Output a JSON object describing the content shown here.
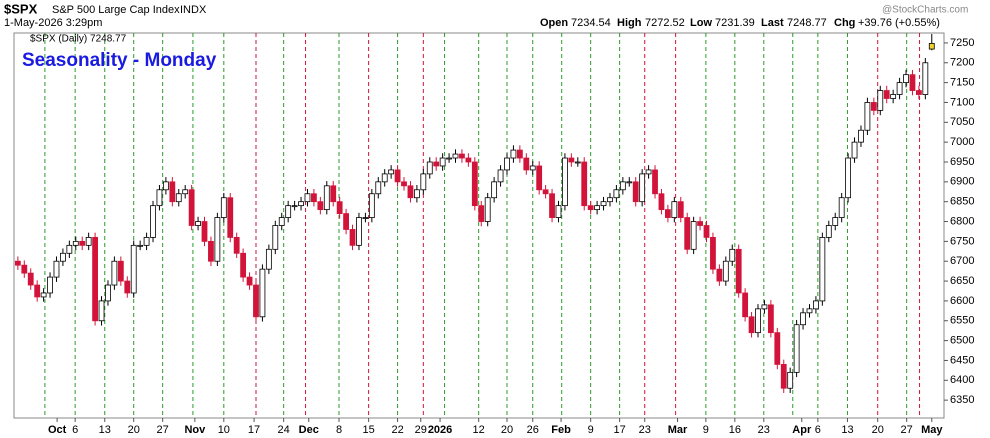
{
  "chart_data": {
    "type": "candlestick",
    "symbol": "$SPX",
    "description": "S&P 500 Large Cap Index",
    "exchange": "INDX",
    "timestamp": "1-May-2026 3:29pm",
    "quote": {
      "open_label": "Open",
      "open": "7234.54",
      "high_label": "High",
      "high": "7272.52",
      "low_label": "Low",
      "low": "7231.39",
      "last_label": "Last",
      "last": "7248.77",
      "chg_label": "Chg",
      "chg": "+39.76 (+0.55%)"
    },
    "watermark": "@StockCharts.com",
    "legend": "$SPX (Daily) 7248.77",
    "title": "Seasonality - Monday",
    "up_color": "#ffffff",
    "down_color": "#d2143a",
    "last_color": "#f2d22e",
    "ylim": [
      6305,
      7275
    ],
    "yticks": [
      6350,
      6400,
      6450,
      6500,
      6550,
      6600,
      6650,
      6700,
      6750,
      6800,
      6850,
      6900,
      6950,
      7000,
      7050,
      7100,
      7150,
      7200,
      7250
    ],
    "xlim": [
      -0.6,
      143.9
    ],
    "xticks": [
      {
        "value": 6.1,
        "label": "Oct"
      },
      {
        "value": 8.9,
        "label": "6"
      },
      {
        "value": 13.5,
        "label": "13"
      },
      {
        "value": 18,
        "label": "20"
      },
      {
        "value": 22.5,
        "label": "27"
      },
      {
        "value": 27.5,
        "label": "Nov"
      },
      {
        "value": 32,
        "label": "10"
      },
      {
        "value": 36.7,
        "label": "17"
      },
      {
        "value": 41.3,
        "label": "24"
      },
      {
        "value": 45.2,
        "label": "Dec"
      },
      {
        "value": 49.9,
        "label": "8"
      },
      {
        "value": 54.5,
        "label": "15"
      },
      {
        "value": 59,
        "label": "22"
      },
      {
        "value": 62.6,
        "label": "29"
      },
      {
        "value": 65.6,
        "label": "2026"
      },
      {
        "value": 71.6,
        "label": "12"
      },
      {
        "value": 76,
        "label": "20"
      },
      {
        "value": 80,
        "label": "26"
      },
      {
        "value": 84.4,
        "label": "Feb"
      },
      {
        "value": 89,
        "label": "9"
      },
      {
        "value": 93.5,
        "label": "17"
      },
      {
        "value": 97.4,
        "label": "23"
      },
      {
        "value": 102.5,
        "label": "Mar"
      },
      {
        "value": 106.9,
        "label": "9"
      },
      {
        "value": 111.4,
        "label": "16"
      },
      {
        "value": 115.9,
        "label": "23"
      },
      {
        "value": 121.8,
        "label": "Apr"
      },
      {
        "value": 124.3,
        "label": "6"
      },
      {
        "value": 128.9,
        "label": "13"
      },
      {
        "value": 133.6,
        "label": "20"
      },
      {
        "value": 138.1,
        "label": "27"
      },
      {
        "value": 142,
        "label": "May"
      }
    ],
    "bold_ticks": [
      "Oct",
      "Nov",
      "Dec",
      "2026",
      "Feb",
      "Mar",
      "Apr",
      "May"
    ],
    "monday_lines": [
      {
        "value": 4.2,
        "color": "#2a9d2a"
      },
      {
        "value": 8.9,
        "color": "#2a9d2a"
      },
      {
        "value": 13.5,
        "color": "#2a9d2a"
      },
      {
        "value": 18,
        "color": "#2a9d2a"
      },
      {
        "value": 22.5,
        "color": "#2a9d2a"
      },
      {
        "value": 27.2,
        "color": "#2a9d2a"
      },
      {
        "value": 32,
        "color": "#2a9d2a"
      },
      {
        "value": 37,
        "color": "#d2143a"
      },
      {
        "value": 41.3,
        "color": "#2a9d2a"
      },
      {
        "value": 44.7,
        "color": "#d2143a"
      },
      {
        "value": 49.9,
        "color": "#2a9d2a"
      },
      {
        "value": 54.5,
        "color": "#d2143a"
      },
      {
        "value": 59,
        "color": "#2a9d2a"
      },
      {
        "value": 63,
        "color": "#d2143a"
      },
      {
        "value": 66.3,
        "color": "#2a9d2a"
      },
      {
        "value": 71.6,
        "color": "#2a9d2a"
      },
      {
        "value": 76,
        "color": "#2a9d2a"
      },
      {
        "value": 80,
        "color": "#2a9d2a"
      },
      {
        "value": 84.5,
        "color": "#2a9d2a"
      },
      {
        "value": 89,
        "color": "#2a9d2a"
      },
      {
        "value": 93.5,
        "color": "#2a9d2a"
      },
      {
        "value": 97.4,
        "color": "#d2143a"
      },
      {
        "value": 102.2,
        "color": "#d2143a"
      },
      {
        "value": 106.9,
        "color": "#2a9d2a"
      },
      {
        "value": 111.4,
        "color": "#2a9d2a"
      },
      {
        "value": 115.9,
        "color": "#2a9d2a"
      },
      {
        "value": 120.4,
        "color": "#2a9d2a"
      },
      {
        "value": 124.3,
        "color": "#2a9d2a"
      },
      {
        "value": 128.9,
        "color": "#2a9d2a"
      },
      {
        "value": 133.6,
        "color": "#d2143a"
      },
      {
        "value": 138.1,
        "color": "#2a9d2a"
      },
      {
        "value": 140.1,
        "color": "#d2143a"
      }
    ],
    "candles": [
      [
        6700,
        6712,
        6678,
        6690
      ],
      [
        6690,
        6702,
        6658,
        6670
      ],
      [
        6670,
        6682,
        6628,
        6640
      ],
      [
        6640,
        6652,
        6598,
        6610
      ],
      [
        6610,
        6632,
        6598,
        6620
      ],
      [
        6620,
        6672,
        6608,
        6660
      ],
      [
        6660,
        6712,
        6648,
        6700
      ],
      [
        6700,
        6732,
        6688,
        6720
      ],
      [
        6720,
        6752,
        6708,
        6740
      ],
      [
        6740,
        6762,
        6728,
        6750
      ],
      [
        6750,
        6762,
        6728,
        6740
      ],
      [
        6740,
        6772,
        6728,
        6760
      ],
      [
        6760,
        6772,
        6538,
        6550
      ],
      [
        6550,
        6612,
        6538,
        6600
      ],
      [
        6600,
        6652,
        6588,
        6640
      ],
      [
        6640,
        6712,
        6628,
        6700
      ],
      [
        6700,
        6712,
        6638,
        6650
      ],
      [
        6650,
        6662,
        6608,
        6620
      ],
      [
        6620,
        6752,
        6608,
        6740
      ],
      [
        6740,
        6752,
        6728,
        6740
      ],
      [
        6740,
        6772,
        6728,
        6760
      ],
      [
        6760,
        6852,
        6748,
        6840
      ],
      [
        6840,
        6892,
        6828,
        6880
      ],
      [
        6880,
        6912,
        6868,
        6900
      ],
      [
        6900,
        6912,
        6838,
        6850
      ],
      [
        6850,
        6882,
        6838,
        6870
      ],
      [
        6870,
        6892,
        6858,
        6880
      ],
      [
        6880,
        6892,
        6778,
        6790
      ],
      [
        6790,
        6812,
        6778,
        6800
      ],
      [
        6800,
        6812,
        6738,
        6750
      ],
      [
        6750,
        6762,
        6688,
        6700
      ],
      [
        6700,
        6822,
        6688,
        6810
      ],
      [
        6810,
        6872,
        6798,
        6860
      ],
      [
        6860,
        6872,
        6748,
        6760
      ],
      [
        6760,
        6772,
        6708,
        6720
      ],
      [
        6720,
        6732,
        6648,
        6660
      ],
      [
        6660,
        6672,
        6628,
        6640
      ],
      [
        6640,
        6652,
        6548,
        6560
      ],
      [
        6560,
        6692,
        6548,
        6680
      ],
      [
        6680,
        6742,
        6668,
        6730
      ],
      [
        6730,
        6802,
        6718,
        6790
      ],
      [
        6790,
        6822,
        6778,
        6810
      ],
      [
        6810,
        6852,
        6798,
        6840
      ],
      [
        6840,
        6852,
        6828,
        6840
      ],
      [
        6840,
        6862,
        6828,
        6850
      ],
      [
        6850,
        6882,
        6838,
        6870
      ],
      [
        6870,
        6882,
        6838,
        6850
      ],
      [
        6850,
        6862,
        6818,
        6830
      ],
      [
        6830,
        6902,
        6818,
        6890
      ],
      [
        6890,
        6902,
        6838,
        6850
      ],
      [
        6850,
        6862,
        6808,
        6820
      ],
      [
        6820,
        6832,
        6768,
        6780
      ],
      [
        6780,
        6792,
        6728,
        6740
      ],
      [
        6740,
        6822,
        6728,
        6810
      ],
      [
        6810,
        6822,
        6798,
        6810
      ],
      [
        6810,
        6882,
        6798,
        6870
      ],
      [
        6870,
        6912,
        6858,
        6900
      ],
      [
        6900,
        6932,
        6888,
        6920
      ],
      [
        6920,
        6942,
        6908,
        6930
      ],
      [
        6930,
        6942,
        6888,
        6900
      ],
      [
        6900,
        6912,
        6878,
        6890
      ],
      [
        6890,
        6902,
        6848,
        6860
      ],
      [
        6860,
        6892,
        6848,
        6880
      ],
      [
        6880,
        6932,
        6868,
        6920
      ],
      [
        6920,
        6962,
        6908,
        6950
      ],
      [
        6950,
        6962,
        6928,
        6940
      ],
      [
        6940,
        6972,
        6928,
        6960
      ],
      [
        6960,
        6972,
        6948,
        6960
      ],
      [
        6960,
        6982,
        6948,
        6970
      ],
      [
        6970,
        6982,
        6948,
        6960
      ],
      [
        6960,
        6972,
        6938,
        6950
      ],
      [
        6950,
        6962,
        6828,
        6840
      ],
      [
        6840,
        6852,
        6788,
        6800
      ],
      [
        6800,
        6872,
        6788,
        6860
      ],
      [
        6860,
        6912,
        6848,
        6900
      ],
      [
        6900,
        6942,
        6888,
        6930
      ],
      [
        6930,
        6972,
        6918,
        6960
      ],
      [
        6960,
        6992,
        6948,
        6980
      ],
      [
        6980,
        6992,
        6948,
        6960
      ],
      [
        6960,
        6972,
        6918,
        6930
      ],
      [
        6930,
        6952,
        6918,
        6940
      ],
      [
        6940,
        6952,
        6868,
        6880
      ],
      [
        6880,
        6892,
        6858,
        6870
      ],
      [
        6870,
        6882,
        6798,
        6810
      ],
      [
        6810,
        6852,
        6798,
        6840
      ],
      [
        6840,
        6972,
        6828,
        6960
      ],
      [
        6960,
        6972,
        6938,
        6950
      ],
      [
        6950,
        6962,
        6938,
        6950
      ],
      [
        6950,
        6962,
        6828,
        6840
      ],
      [
        6840,
        6852,
        6818,
        6830
      ],
      [
        6830,
        6852,
        6818,
        6840
      ],
      [
        6840,
        6862,
        6828,
        6850
      ],
      [
        6850,
        6872,
        6838,
        6860
      ],
      [
        6860,
        6892,
        6848,
        6880
      ],
      [
        6880,
        6912,
        6868,
        6900
      ],
      [
        6900,
        6912,
        6888,
        6900
      ],
      [
        6900,
        6912,
        6838,
        6850
      ],
      [
        6850,
        6932,
        6838,
        6920
      ],
      [
        6920,
        6942,
        6908,
        6930
      ],
      [
        6930,
        6942,
        6858,
        6870
      ],
      [
        6870,
        6882,
        6818,
        6830
      ],
      [
        6830,
        6842,
        6798,
        6810
      ],
      [
        6810,
        6862,
        6798,
        6850
      ],
      [
        6850,
        6862,
        6798,
        6810
      ],
      [
        6810,
        6822,
        6718,
        6730
      ],
      [
        6730,
        6812,
        6718,
        6800
      ],
      [
        6800,
        6812,
        6778,
        6790
      ],
      [
        6790,
        6802,
        6748,
        6760
      ],
      [
        6760,
        6772,
        6668,
        6680
      ],
      [
        6680,
        6692,
        6638,
        6650
      ],
      [
        6650,
        6712,
        6638,
        6700
      ],
      [
        6700,
        6742,
        6688,
        6730
      ],
      [
        6730,
        6742,
        6608,
        6620
      ],
      [
        6620,
        6632,
        6548,
        6560
      ],
      [
        6560,
        6572,
        6508,
        6520
      ],
      [
        6520,
        6592,
        6508,
        6580
      ],
      [
        6580,
        6602,
        6568,
        6590
      ],
      [
        6590,
        6602,
        6508,
        6520
      ],
      [
        6520,
        6532,
        6428,
        6440
      ],
      [
        6440,
        6452,
        6368,
        6380
      ],
      [
        6380,
        6432,
        6368,
        6420
      ],
      [
        6420,
        6552,
        6408,
        6540
      ],
      [
        6540,
        6582,
        6528,
        6570
      ],
      [
        6570,
        6592,
        6558,
        6580
      ],
      [
        6580,
        6612,
        6568,
        6600
      ],
      [
        6600,
        6772,
        6588,
        6760
      ],
      [
        6760,
        6802,
        6748,
        6790
      ],
      [
        6790,
        6822,
        6778,
        6810
      ],
      [
        6810,
        6872,
        6798,
        6860
      ],
      [
        6860,
        6972,
        6848,
        6960
      ],
      [
        6960,
        7012,
        6948,
        7000
      ],
      [
        7000,
        7042,
        6988,
        7030
      ],
      [
        7030,
        7112,
        7018,
        7100
      ],
      [
        7100,
        7112,
        7068,
        7080
      ],
      [
        7080,
        7142,
        7068,
        7130
      ],
      [
        7130,
        7142,
        7098,
        7110
      ],
      [
        7110,
        7132,
        7098,
        7120
      ],
      [
        7120,
        7162,
        7108,
        7150
      ],
      [
        7150,
        7182,
        7138,
        7170
      ],
      [
        7170,
        7182,
        7118,
        7130
      ],
      [
        7130,
        7142,
        7108,
        7120
      ],
      [
        7120,
        7212,
        7108,
        7200
      ],
      [
        7234.54,
        7272.52,
        7231.39,
        7248.77
      ]
    ]
  }
}
